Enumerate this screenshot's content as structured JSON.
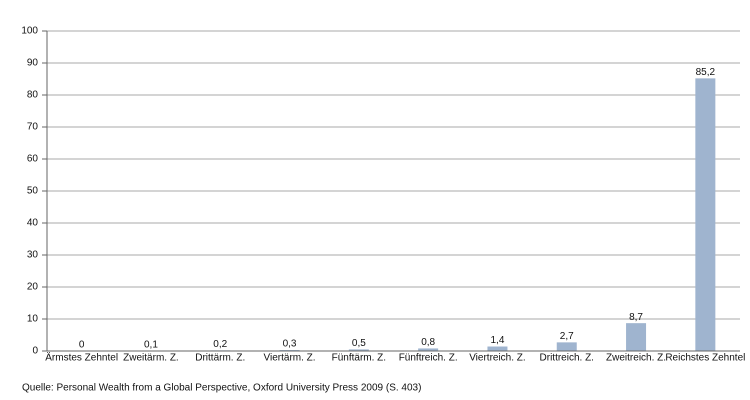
{
  "chart_data": {
    "type": "bar",
    "categories": [
      "Ärmstes Zehntel",
      "Zweitärm. Z.",
      "Drittärm. Z.",
      "Viertärm. Z.",
      "Fünftärm. Z.",
      "Fünftreich. Z.",
      "Viertreich. Z.",
      "Drittreich. Z.",
      "Zweitreich. Z.",
      "Reichstes Zehntel"
    ],
    "values": [
      0,
      0.1,
      0.2,
      0.3,
      0.5,
      0.8,
      1.4,
      2.7,
      8.7,
      85.2
    ],
    "value_labels": [
      "0",
      "0,1",
      "0,2",
      "0,3",
      "0,5",
      "0,8",
      "1,4",
      "2,7",
      "8,7",
      "85,2"
    ],
    "color": "#9fb4cf",
    "ylim": [
      0,
      100
    ],
    "yticks": [
      0,
      10,
      20,
      30,
      40,
      50,
      60,
      70,
      80,
      90,
      100
    ],
    "grid": true,
    "source": "Quelle: Personal Wealth from a Global Perspective, Oxford University Press 2009 (S. 403)"
  }
}
